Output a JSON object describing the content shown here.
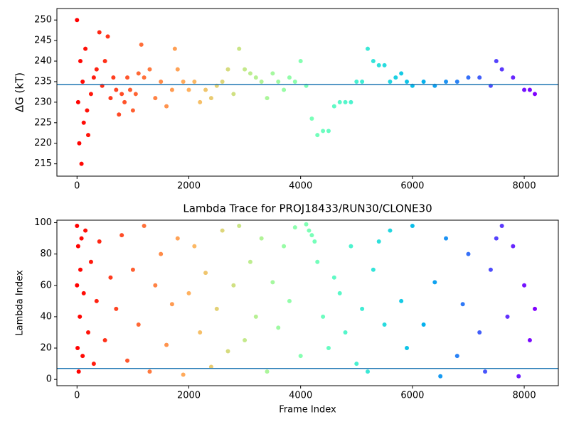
{
  "chart_data": [
    {
      "type": "scatter",
      "y_label": "ΔG (kT)",
      "colormap": "rainbow_r",
      "hline": 234.3,
      "hline_color": "#1f77b4",
      "x": [
        0,
        20,
        40,
        60,
        80,
        100,
        120,
        150,
        180,
        200,
        250,
        300,
        350,
        400,
        450,
        500,
        550,
        600,
        650,
        700,
        750,
        800,
        850,
        900,
        950,
        1000,
        1050,
        1100,
        1150,
        1200,
        1300,
        1400,
        1500,
        1600,
        1700,
        1750,
        1800,
        1900,
        2000,
        2100,
        2200,
        2300,
        2400,
        2500,
        2600,
        2700,
        2800,
        2900,
        3000,
        3100,
        3200,
        3300,
        3400,
        3500,
        3600,
        3700,
        3800,
        3900,
        4000,
        4100,
        4200,
        4300,
        4400,
        4500,
        4600,
        4700,
        4800,
        4900,
        5000,
        5100,
        5200,
        5300,
        5400,
        5500,
        5600,
        5700,
        5800,
        5900,
        6000,
        6200,
        6400,
        6600,
        6800,
        7000,
        7200,
        7400,
        7500,
        7600,
        7800,
        8000,
        8100,
        8190
      ],
      "y": [
        250,
        230,
        220,
        240,
        215,
        235,
        225,
        243,
        228,
        222,
        232,
        236,
        238,
        247,
        234,
        240,
        246,
        231,
        236,
        233,
        227,
        232,
        230,
        236,
        233,
        228,
        232,
        237,
        244,
        236,
        238,
        231,
        235,
        229,
        233,
        243,
        238,
        235,
        233,
        235,
        230,
        233,
        231,
        234,
        235,
        238,
        232,
        243,
        238,
        237,
        236,
        235,
        231,
        237,
        235,
        233,
        236,
        235,
        240,
        234,
        226,
        222,
        223,
        223,
        229,
        230,
        230,
        230,
        235,
        235,
        243,
        240,
        239,
        239,
        235,
        236,
        237,
        235,
        234,
        235,
        234,
        235,
        235,
        236,
        236,
        234,
        240,
        238,
        236,
        233,
        233,
        232
      ],
      "xlim": [
        -360,
        8610
      ],
      "ylim": [
        212,
        252.8
      ],
      "xticks": [
        0,
        2000,
        4000,
        6000,
        8000
      ],
      "yticks": [
        215,
        220,
        225,
        230,
        235,
        240,
        245,
        250
      ]
    },
    {
      "type": "scatter",
      "title": "Lambda Trace for PROJ18433/RUN30/CLONE30",
      "x_label": "Frame Index",
      "y_label": "Lambda Index",
      "colormap": "rainbow_r",
      "hline": 7,
      "hline_color": "#1f77b4",
      "x": [
        0,
        0,
        10,
        20,
        30,
        50,
        60,
        80,
        100,
        120,
        150,
        200,
        250,
        300,
        350,
        400,
        500,
        600,
        700,
        800,
        900,
        1000,
        1100,
        1200,
        1300,
        1400,
        1500,
        1600,
        1700,
        1800,
        1900,
        2000,
        2100,
        2200,
        2300,
        2400,
        2500,
        2600,
        2700,
        2800,
        2900,
        3000,
        3100,
        3200,
        3300,
        3400,
        3500,
        3600,
        3700,
        3800,
        3900,
        4000,
        4100,
        4150,
        4200,
        4250,
        4300,
        4400,
        4500,
        4600,
        4700,
        4800,
        4900,
        5000,
        5100,
        5200,
        5300,
        5400,
        5500,
        5600,
        5800,
        5900,
        6000,
        6200,
        6400,
        6500,
        6600,
        6800,
        6900,
        7000,
        7200,
        7300,
        7400,
        7500,
        7600,
        7700,
        7800,
        7900,
        8000,
        8100,
        8190
      ],
      "y": [
        98,
        60,
        20,
        85,
        5,
        40,
        70,
        90,
        15,
        55,
        95,
        30,
        75,
        10,
        50,
        88,
        25,
        65,
        45,
        92,
        12,
        70,
        35,
        98,
        5,
        60,
        80,
        22,
        48,
        90,
        3,
        55,
        85,
        30,
        68,
        8,
        45,
        95,
        18,
        60,
        98,
        25,
        75,
        40,
        90,
        5,
        62,
        33,
        85,
        50,
        97,
        15,
        99,
        95,
        92,
        88,
        75,
        40,
        20,
        65,
        55,
        30,
        85,
        10,
        45,
        5,
        70,
        88,
        35,
        95,
        50,
        20,
        98,
        35,
        62,
        2,
        90,
        15,
        48,
        80,
        30,
        5,
        70,
        90,
        98,
        40,
        85,
        2,
        60,
        25,
        45
      ],
      "xlim": [
        -360,
        8610
      ],
      "ylim": [
        -4,
        101.6
      ],
      "xticks": [
        0,
        2000,
        4000,
        6000,
        8000
      ],
      "yticks": [
        0,
        20,
        40,
        60,
        80,
        100
      ]
    }
  ]
}
